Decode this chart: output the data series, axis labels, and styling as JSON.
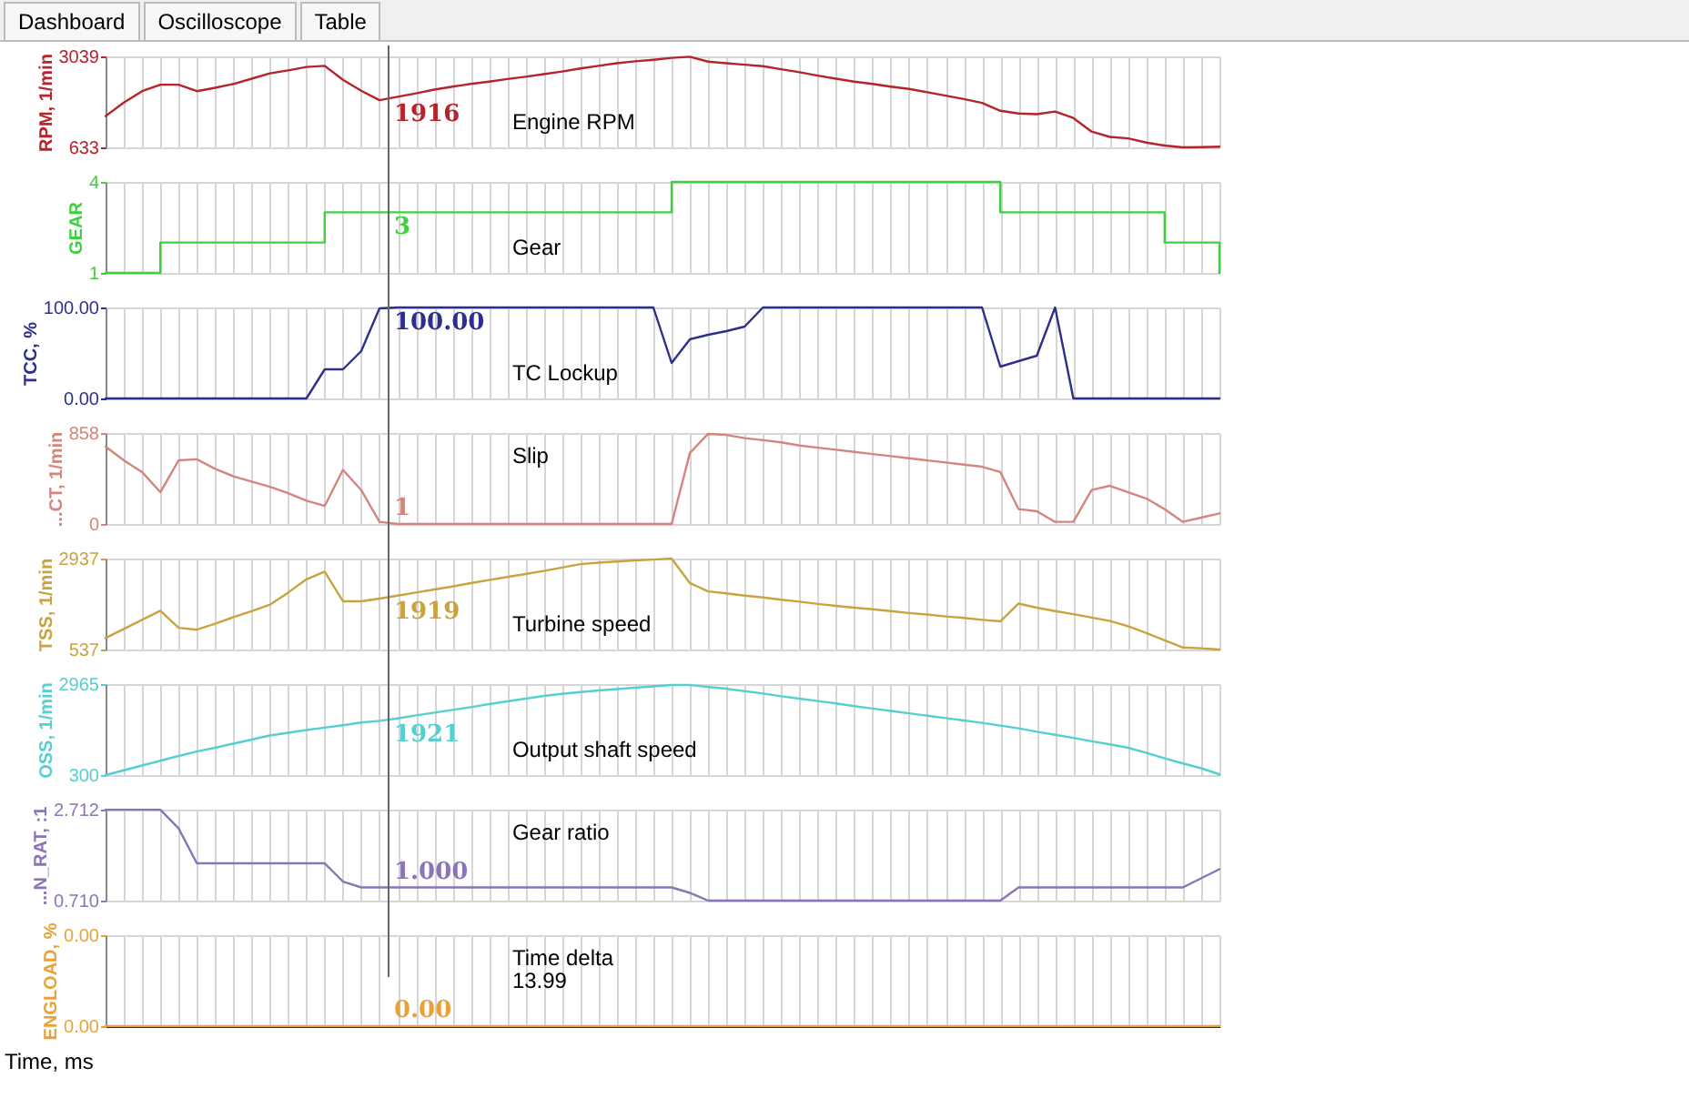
{
  "chart_data": [
    {
      "type": "other",
      "annotations": [
        "Dashboard",
        "Oscilloscope",
        "Table"
      ]
    },
    {
      "type": "line",
      "ylabel": "RPM, 1/min",
      "categories": [
        null,
        null,
        null,
        null,
        null,
        null,
        null,
        null,
        null,
        null,
        null,
        null,
        null,
        null,
        null,
        null,
        null,
        null,
        null,
        null,
        null,
        null,
        null,
        null,
        null,
        null,
        null,
        null,
        null,
        null,
        null,
        null,
        null,
        null,
        null,
        null,
        null,
        null,
        null,
        null,
        null,
        null,
        null,
        null,
        null,
        null,
        null,
        null,
        null,
        null,
        null,
        null,
        null,
        null,
        null,
        null,
        null,
        null,
        null,
        null,
        null,
        null
      ],
      "series": [
        {
          "color": "#b5232b",
          "values": [
            1460,
            1820,
            2120,
            2290,
            2290,
            2120,
            2210,
            2310,
            2450,
            2590,
            2670,
            2760,
            2790,
            2420,
            2130,
            1880,
            1970,
            2060,
            2160,
            2240,
            2310,
            2370,
            2440,
            2500,
            2570,
            2640,
            2720,
            2790,
            2860,
            2910,
            2950,
            3000,
            3030,
            2900,
            2860,
            2820,
            2780,
            2700,
            2620,
            2530,
            2450,
            2370,
            2310,
            2240,
            2180,
            2090,
            2000,
            1910,
            1810,
            1600,
            1530,
            1510,
            1580,
            1410,
            1050,
            910,
            870,
            760,
            680,
            633,
            640,
            650
          ]
        }
      ],
      "ylim": [
        633,
        3039
      ],
      "yticks": [
        633,
        3039
      ],
      "grid": true,
      "tick_labels": "y",
      "annotations": [
        {
          "text": "1916",
          "y": 1916
        },
        "Engine RPM"
      ]
    },
    {
      "type": "step",
      "ylabel": "GEAR",
      "categories": [
        null,
        null,
        null,
        null,
        null,
        null,
        null,
        null,
        null,
        null,
        null,
        null,
        null,
        null,
        null,
        null,
        null,
        null,
        null,
        null,
        null,
        null,
        null,
        null,
        null,
        null,
        null,
        null,
        null,
        null,
        null,
        null,
        null,
        null,
        null,
        null,
        null,
        null,
        null,
        null,
        null,
        null,
        null,
        null,
        null,
        null,
        null,
        null,
        null,
        null,
        null,
        null,
        null,
        null,
        null,
        null,
        null,
        null,
        null,
        null,
        null,
        null
      ],
      "series": [
        {
          "color": "#3fcf3f",
          "values": [
            1,
            1,
            1,
            2,
            2,
            2,
            2,
            2,
            2,
            2,
            2,
            2,
            3,
            3,
            3,
            3,
            3,
            3,
            3,
            3,
            3,
            3,
            3,
            3,
            3,
            3,
            3,
            3,
            3,
            3,
            3,
            4,
            4,
            4,
            4,
            4,
            4,
            4,
            4,
            4,
            4,
            4,
            4,
            4,
            4,
            4,
            4,
            4,
            4,
            3,
            3,
            3,
            3,
            3,
            3,
            3,
            3,
            3,
            2,
            2,
            2,
            1
          ]
        }
      ],
      "ylim": [
        1,
        4
      ],
      "yticks": [
        1,
        4
      ],
      "grid": true,
      "tick_labels": "y",
      "annotations": [
        {
          "text": "3",
          "y": 3
        },
        "Gear"
      ]
    },
    {
      "type": "line",
      "ylabel": "TCC, %",
      "categories": [
        null,
        null,
        null,
        null,
        null,
        null,
        null,
        null,
        null,
        null,
        null,
        null,
        null,
        null,
        null,
        null,
        null,
        null,
        null,
        null,
        null,
        null,
        null,
        null,
        null,
        null,
        null,
        null,
        null,
        null,
        null,
        null,
        null,
        null,
        null,
        null,
        null,
        null,
        null,
        null,
        null,
        null,
        null,
        null,
        null,
        null,
        null,
        null,
        null,
        null,
        null,
        null,
        null,
        null,
        null,
        null,
        null,
        null,
        null,
        null,
        null,
        null
      ],
      "series": [
        {
          "color": "#2d2f8c",
          "values": [
            0,
            0,
            0,
            0,
            0,
            0,
            0,
            0,
            0,
            0,
            0,
            0,
            32,
            32,
            52,
            99,
            100,
            100,
            100,
            100,
            100,
            100,
            100,
            100,
            100,
            100,
            100,
            100,
            100,
            100,
            100,
            39,
            65,
            70,
            74,
            79,
            100,
            100,
            100,
            100,
            100,
            100,
            100,
            100,
            100,
            100,
            100,
            100,
            100,
            35,
            41,
            47,
            100,
            0,
            0,
            0,
            0,
            0,
            0,
            0,
            0,
            0
          ]
        }
      ],
      "ylim": [
        0,
        100
      ],
      "yticks": [
        {
          "value": 0,
          "label": "0.00"
        },
        {
          "value": 100,
          "label": "100.00"
        }
      ],
      "grid": true,
      "tick_labels": "y",
      "annotations": [
        {
          "text": "100.00",
          "y": 100
        },
        "TC Lockup"
      ]
    },
    {
      "type": "line",
      "ylabel": "...CT, 1/min",
      "categories": [
        null,
        null,
        null,
        null,
        null,
        null,
        null,
        null,
        null,
        null,
        null,
        null,
        null,
        null,
        null,
        null,
        null,
        null,
        null,
        null,
        null,
        null,
        null,
        null,
        null,
        null,
        null,
        null,
        null,
        null,
        null,
        null,
        null,
        null,
        null,
        null,
        null,
        null,
        null,
        null,
        null,
        null,
        null,
        null,
        null,
        null,
        null,
        null,
        null,
        null,
        null,
        null,
        null,
        null,
        null,
        null,
        null,
        null,
        null,
        null,
        null,
        null
      ],
      "series": [
        {
          "color": "#d4857d",
          "values": [
            730,
            600,
            490,
            300,
            600,
            610,
            520,
            450,
            400,
            350,
            290,
            220,
            170,
            510,
            320,
            20,
            0,
            0,
            0,
            0,
            0,
            0,
            0,
            0,
            0,
            0,
            0,
            0,
            0,
            0,
            0,
            0,
            670,
            850,
            840,
            810,
            790,
            770,
            740,
            720,
            700,
            680,
            660,
            640,
            620,
            600,
            580,
            560,
            540,
            490,
            140,
            120,
            20,
            20,
            320,
            360,
            300,
            240,
            140,
            20,
            60,
            100
          ]
        }
      ],
      "ylim": [
        0,
        858
      ],
      "yticks": [
        0,
        858
      ],
      "grid": true,
      "tick_labels": "y",
      "annotations": [
        {
          "text": "1",
          "y": 1
        },
        "Slip"
      ]
    },
    {
      "type": "line",
      "ylabel": "TSS, 1/min",
      "categories": [
        null,
        null,
        null,
        null,
        null,
        null,
        null,
        null,
        null,
        null,
        null,
        null,
        null,
        null,
        null,
        null,
        null,
        null,
        null,
        null,
        null,
        null,
        null,
        null,
        null,
        null,
        null,
        null,
        null,
        null,
        null,
        null,
        null,
        null,
        null,
        null,
        null,
        null,
        null,
        null,
        null,
        null,
        null,
        null,
        null,
        null,
        null,
        null,
        null,
        null,
        null,
        null,
        null,
        null,
        null,
        null,
        null,
        null,
        null,
        null,
        null,
        null
      ],
      "series": [
        {
          "color": "#c9a33d",
          "values": [
            840,
            1080,
            1320,
            1560,
            1110,
            1060,
            1220,
            1390,
            1550,
            1720,
            2040,
            2390,
            2590,
            1810,
            1810,
            1880,
            1960,
            2040,
            2120,
            2200,
            2290,
            2370,
            2450,
            2530,
            2610,
            2700,
            2790,
            2830,
            2860,
            2890,
            2910,
            2937,
            2290,
            2070,
            2020,
            1960,
            1910,
            1850,
            1800,
            1740,
            1690,
            1640,
            1600,
            1550,
            1500,
            1460,
            1410,
            1370,
            1320,
            1280,
            1750,
            1640,
            1550,
            1470,
            1380,
            1290,
            1150,
            970,
            780,
            590,
            570,
            537
          ]
        }
      ],
      "ylim": [
        537,
        2937
      ],
      "yticks": [
        537,
        2937
      ],
      "grid": true,
      "tick_labels": "y",
      "annotations": [
        {
          "text": "1919",
          "y": 1919
        },
        "Turbine speed"
      ]
    },
    {
      "type": "line",
      "ylabel": "OSS, 1/min",
      "categories": [
        null,
        null,
        null,
        null,
        null,
        null,
        null,
        null,
        null,
        null,
        null,
        null,
        null,
        null,
        null,
        null,
        null,
        null,
        null,
        null,
        null,
        null,
        null,
        null,
        null,
        null,
        null,
        null,
        null,
        null,
        null,
        null,
        null,
        null,
        null,
        null,
        null,
        null,
        null,
        null,
        null,
        null,
        null,
        null,
        null,
        null,
        null,
        null,
        null,
        null,
        null,
        null,
        null,
        null,
        null,
        null,
        null,
        null,
        null,
        null,
        null,
        null
      ],
      "series": [
        {
          "color": "#55cfcf",
          "values": [
            300,
            440,
            580,
            720,
            860,
            990,
            1100,
            1220,
            1340,
            1460,
            1540,
            1620,
            1690,
            1760,
            1840,
            1890,
            1960,
            2050,
            2130,
            2210,
            2290,
            2380,
            2460,
            2540,
            2620,
            2680,
            2730,
            2780,
            2820,
            2860,
            2900,
            2940,
            2940,
            2880,
            2830,
            2760,
            2690,
            2610,
            2540,
            2470,
            2400,
            2320,
            2250,
            2180,
            2110,
            2040,
            1970,
            1900,
            1830,
            1750,
            1670,
            1570,
            1480,
            1390,
            1290,
            1200,
            1100,
            950,
            790,
            640,
            500,
            320
          ]
        }
      ],
      "ylim": [
        300,
        2965
      ],
      "yticks": [
        300,
        2965
      ],
      "grid": true,
      "tick_labels": "y",
      "annotations": [
        {
          "text": "1921",
          "y": 1921
        },
        "Output shaft speed"
      ]
    },
    {
      "type": "line",
      "ylabel": "...N_RAT, :1",
      "categories": [
        null,
        null,
        null,
        null,
        null,
        null,
        null,
        null,
        null,
        null,
        null,
        null,
        null,
        null,
        null,
        null,
        null,
        null,
        null,
        null,
        null,
        null,
        null,
        null,
        null,
        null,
        null,
        null,
        null,
        null,
        null,
        null,
        null,
        null,
        null,
        null,
        null,
        null,
        null,
        null,
        null,
        null,
        null,
        null,
        null,
        null,
        null,
        null,
        null,
        null,
        null,
        null,
        null,
        null,
        null,
        null,
        null,
        null,
        null,
        null,
        null,
        null
      ],
      "series": [
        {
          "color": "#8c74b8",
          "values": [
            2.71,
            2.71,
            2.71,
            2.71,
            2.3,
            1.53,
            1.53,
            1.53,
            1.53,
            1.53,
            1.53,
            1.53,
            1.53,
            1.13,
            1.0,
            1.0,
            1.0,
            1.0,
            1.0,
            1.0,
            1.0,
            1.0,
            1.0,
            1.0,
            1.0,
            1.0,
            1.0,
            1.0,
            1.0,
            1.0,
            1.0,
            1.0,
            0.88,
            0.71,
            0.71,
            0.71,
            0.71,
            0.71,
            0.71,
            0.71,
            0.71,
            0.71,
            0.71,
            0.71,
            0.71,
            0.71,
            0.71,
            0.71,
            0.71,
            0.71,
            1.0,
            1.0,
            1.0,
            1.0,
            1.0,
            1.0,
            1.0,
            1.0,
            1.0,
            1.0,
            1.2,
            1.4
          ]
        }
      ],
      "ylim": [
        0.71,
        2.712
      ],
      "yticks": [
        {
          "value": 0.71,
          "label": "0.710"
        },
        2.712
      ],
      "grid": true,
      "tick_labels": "y",
      "annotations": [
        {
          "text": "1.000",
          "y": 1.0
        },
        "Gear ratio"
      ]
    },
    {
      "type": "line",
      "ylabel": "ENGLOAD, %",
      "xlabel": "Time, ms",
      "categories": [
        null,
        null,
        null,
        null,
        null,
        null,
        null,
        null,
        null,
        null,
        null,
        null,
        null,
        null,
        null,
        null,
        null,
        null,
        null,
        null,
        null,
        null,
        null,
        null,
        null,
        null,
        null,
        null,
        null,
        null,
        null,
        null,
        null,
        null,
        null,
        null,
        null,
        null,
        null,
        null,
        null,
        null,
        null,
        null,
        null,
        null,
        null,
        null,
        null,
        null,
        null,
        null,
        null,
        null,
        null,
        null,
        null,
        null,
        null,
        null,
        null,
        null
      ],
      "series": [
        {
          "color": "#e8a23a",
          "values": [
            0,
            0,
            0,
            0,
            0,
            0,
            0,
            0,
            0,
            0,
            0,
            0,
            0,
            0,
            0,
            0,
            0,
            0,
            0,
            0,
            0,
            0,
            0,
            0,
            0,
            0,
            0,
            0,
            0,
            0,
            0,
            0,
            0,
            0,
            0,
            0,
            0,
            0,
            0,
            0,
            0,
            0,
            0,
            0,
            0,
            0,
            0,
            0,
            0,
            0,
            0,
            0,
            0,
            0,
            0,
            0,
            0,
            0,
            0,
            0,
            0,
            0
          ]
        }
      ],
      "ylim": [
        0,
        0.004
      ],
      "yticks": [
        {
          "value": 0,
          "label": "0.00"
        },
        {
          "value": 0.004,
          "label": "0.00"
        }
      ],
      "grid": true,
      "tick_labels": "y",
      "annotations": [
        {
          "text": "0.00",
          "y": 0
        },
        "Time delta",
        "13.99"
      ]
    }
  ]
}
